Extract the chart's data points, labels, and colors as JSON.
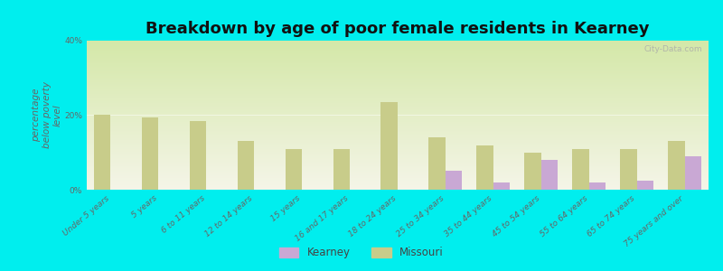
{
  "title": "Breakdown by age of poor female residents in Kearney",
  "ylabel": "percentage\nbelow poverty\nlevel",
  "categories": [
    "Under 5 years",
    "5 years",
    "6 to 11 years",
    "12 to 14 years",
    "15 years",
    "16 and 17 years",
    "18 to 24 years",
    "25 to 34 years",
    "35 to 44 years",
    "45 to 54 years",
    "55 to 64 years",
    "65 to 74 years",
    "75 years and over"
  ],
  "missouri_values": [
    20.0,
    19.5,
    18.5,
    13.0,
    11.0,
    11.0,
    23.5,
    14.0,
    12.0,
    10.0,
    11.0,
    11.0,
    13.0
  ],
  "kearney_values": [
    0,
    0,
    0,
    0,
    0,
    0,
    0,
    5.0,
    2.0,
    8.0,
    2.0,
    2.5,
    9.0
  ],
  "missouri_color": "#c8cc8a",
  "kearney_color": "#c9a8d4",
  "background_color": "#00eeee",
  "plot_bg_top": "#f5f5e8",
  "plot_bg_bottom": "#d4e8a8",
  "ylim": [
    0,
    40
  ],
  "yticks": [
    0,
    20,
    40
  ],
  "ytick_labels": [
    "0%",
    "20%",
    "40%"
  ],
  "bar_width": 0.35,
  "title_fontsize": 13,
  "axis_label_fontsize": 7.5,
  "tick_fontsize": 6.5,
  "legend_labels": [
    "Kearney",
    "Missouri"
  ],
  "watermark": "City-Data.com"
}
